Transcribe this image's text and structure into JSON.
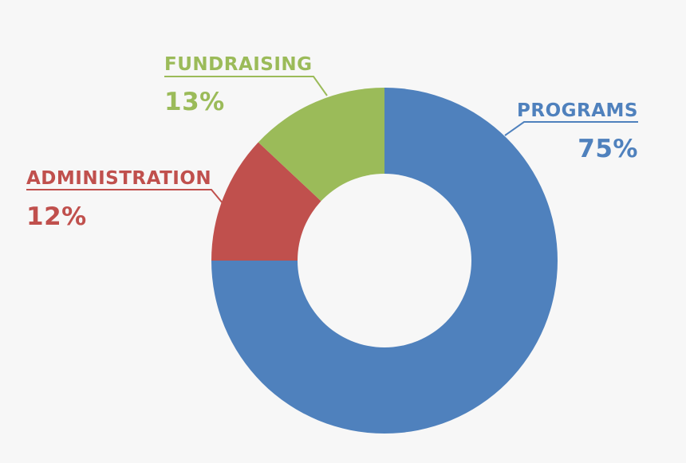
{
  "chart_data": {
    "type": "pie",
    "variant": "donut",
    "title": "",
    "legend": "none",
    "slices": [
      {
        "label": "PROGRAMS",
        "value": 75,
        "value_label": "75%",
        "color": "#4f81bd"
      },
      {
        "label": "ADMINISTRATION",
        "value": 12,
        "value_label": "12%",
        "color": "#c0504d"
      },
      {
        "label": "FUNDRAISING",
        "value": 13,
        "value_label": "13%",
        "color": "#9bbb59"
      }
    ]
  }
}
